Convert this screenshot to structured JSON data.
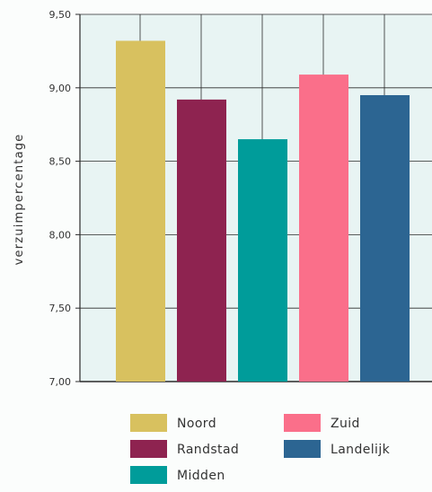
{
  "chart_data": {
    "type": "bar",
    "title": "",
    "xlabel": "",
    "ylabel": "verzuimpercentage",
    "ylim": [
      7.0,
      9.5
    ],
    "yticks": [
      7.0,
      7.5,
      8.0,
      8.5,
      9.0,
      9.5
    ],
    "ytick_labels": [
      "7,00",
      "7,50",
      "8,00",
      "8,50",
      "9,00",
      "9,50"
    ],
    "grid": true,
    "legend_position": "bottom",
    "categories": [
      "Noord",
      "Randstad",
      "Midden",
      "Zuid",
      "Landelijk"
    ],
    "values": [
      9.32,
      8.92,
      8.65,
      9.09,
      8.95
    ],
    "colors": [
      "#d8c15f",
      "#8e2350",
      "#009c9a",
      "#fa6f8a",
      "#2c6592"
    ],
    "legend": [
      "Noord",
      "Randstad",
      "Midden",
      "Zuid",
      "Landelijk"
    ],
    "plot_background": "#e8f4f3"
  }
}
